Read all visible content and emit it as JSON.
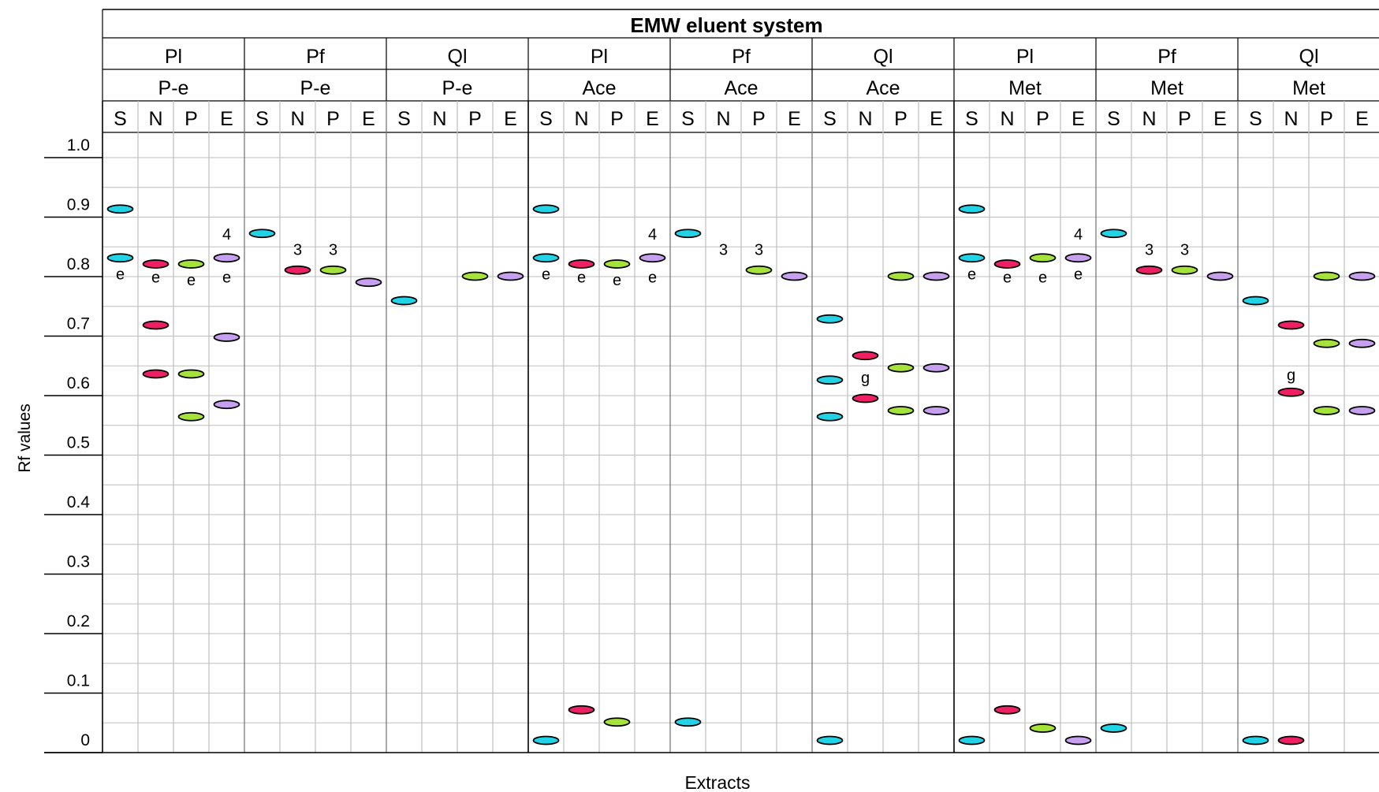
{
  "chart_data": {
    "type": "scatter",
    "title": "EMW eluent system",
    "xlabel": "Extracts",
    "ylabel": "Rf  values",
    "ylim": [
      0,
      1.0
    ],
    "ytick_labels": [
      "0",
      "0.1",
      "0.2",
      "0.3",
      "0.4",
      "0.5",
      "0.6",
      "0.7",
      "0.8",
      "0.9",
      "1.0"
    ],
    "grid": true,
    "lane_labels": [
      "S",
      "N",
      "P",
      "E"
    ],
    "lane_colors": {
      "S": "#22d3e6",
      "N": "#ef1f63",
      "P": "#a6e33a",
      "E": "#c6a0ee"
    },
    "groups": [
      {
        "plant": "Pl",
        "solvent": "P-e",
        "spots": [
          {
            "lane": "S",
            "rf": 0.89
          },
          {
            "lane": "S",
            "rf": 0.81
          },
          {
            "lane": "N",
            "rf": 0.8
          },
          {
            "lane": "N",
            "rf": 0.7
          },
          {
            "lane": "N",
            "rf": 0.62
          },
          {
            "lane": "P",
            "rf": 0.8
          },
          {
            "lane": "P",
            "rf": 0.62
          },
          {
            "lane": "P",
            "rf": 0.55
          },
          {
            "lane": "E",
            "rf": 0.81
          },
          {
            "lane": "E",
            "rf": 0.68
          },
          {
            "lane": "E",
            "rf": 0.57
          }
        ],
        "annotations": [
          {
            "lane": "S",
            "rf": 0.775,
            "text": "e"
          },
          {
            "lane": "N",
            "rf": 0.77,
            "text": "e"
          },
          {
            "lane": "P",
            "rf": 0.765,
            "text": "e"
          },
          {
            "lane": "E",
            "rf": 0.77,
            "text": "e"
          },
          {
            "lane": "E",
            "rf": 0.84,
            "text": "4"
          }
        ]
      },
      {
        "plant": "Pf",
        "solvent": "P-e",
        "spots": [
          {
            "lane": "S",
            "rf": 0.85
          },
          {
            "lane": "N",
            "rf": 0.79
          },
          {
            "lane": "P",
            "rf": 0.79
          },
          {
            "lane": "E",
            "rf": 0.77
          }
        ],
        "annotations": [
          {
            "lane": "N",
            "rf": 0.815,
            "text": "3"
          },
          {
            "lane": "P",
            "rf": 0.815,
            "text": "3"
          }
        ]
      },
      {
        "plant": "Ql",
        "solvent": "P-e",
        "spots": [
          {
            "lane": "S",
            "rf": 0.74
          },
          {
            "lane": "P",
            "rf": 0.78
          },
          {
            "lane": "E",
            "rf": 0.78
          }
        ],
        "annotations": []
      },
      {
        "plant": "Pl",
        "solvent": "Ace",
        "spots": [
          {
            "lane": "S",
            "rf": 0.89
          },
          {
            "lane": "S",
            "rf": 0.81
          },
          {
            "lane": "S",
            "rf": 0.02
          },
          {
            "lane": "N",
            "rf": 0.8
          },
          {
            "lane": "N",
            "rf": 0.07
          },
          {
            "lane": "P",
            "rf": 0.8
          },
          {
            "lane": "P",
            "rf": 0.05
          },
          {
            "lane": "E",
            "rf": 0.81
          }
        ],
        "annotations": [
          {
            "lane": "S",
            "rf": 0.775,
            "text": "e"
          },
          {
            "lane": "N",
            "rf": 0.77,
            "text": "e"
          },
          {
            "lane": "P",
            "rf": 0.765,
            "text": "e"
          },
          {
            "lane": "E",
            "rf": 0.77,
            "text": "e"
          },
          {
            "lane": "E",
            "rf": 0.84,
            "text": "4"
          }
        ]
      },
      {
        "plant": "Pf",
        "solvent": "Ace",
        "spots": [
          {
            "lane": "S",
            "rf": 0.85
          },
          {
            "lane": "S",
            "rf": 0.05
          },
          {
            "lane": "P",
            "rf": 0.79
          },
          {
            "lane": "E",
            "rf": 0.78
          }
        ],
        "annotations": [
          {
            "lane": "N",
            "rf": 0.815,
            "text": "3"
          },
          {
            "lane": "P",
            "rf": 0.815,
            "text": "3"
          }
        ]
      },
      {
        "plant": "Ql",
        "solvent": "Ace",
        "spots": [
          {
            "lane": "S",
            "rf": 0.71
          },
          {
            "lane": "S",
            "rf": 0.61
          },
          {
            "lane": "S",
            "rf": 0.55
          },
          {
            "lane": "S",
            "rf": 0.02
          },
          {
            "lane": "N",
            "rf": 0.65
          },
          {
            "lane": "N",
            "rf": 0.58
          },
          {
            "lane": "P",
            "rf": 0.78
          },
          {
            "lane": "P",
            "rf": 0.63
          },
          {
            "lane": "P",
            "rf": 0.56
          },
          {
            "lane": "E",
            "rf": 0.78
          },
          {
            "lane": "E",
            "rf": 0.63
          },
          {
            "lane": "E",
            "rf": 0.56
          }
        ],
        "annotations": [
          {
            "lane": "N",
            "rf": 0.605,
            "text": "g"
          }
        ]
      },
      {
        "plant": "Pl",
        "solvent": "Met",
        "spots": [
          {
            "lane": "S",
            "rf": 0.89
          },
          {
            "lane": "S",
            "rf": 0.81
          },
          {
            "lane": "S",
            "rf": 0.02
          },
          {
            "lane": "N",
            "rf": 0.8
          },
          {
            "lane": "N",
            "rf": 0.07
          },
          {
            "lane": "P",
            "rf": 0.81
          },
          {
            "lane": "P",
            "rf": 0.04
          },
          {
            "lane": "E",
            "rf": 0.81
          },
          {
            "lane": "E",
            "rf": 0.02
          }
        ],
        "annotations": [
          {
            "lane": "S",
            "rf": 0.775,
            "text": "e"
          },
          {
            "lane": "N",
            "rf": 0.77,
            "text": "e"
          },
          {
            "lane": "P",
            "rf": 0.77,
            "text": "e"
          },
          {
            "lane": "E",
            "rf": 0.775,
            "text": "e"
          },
          {
            "lane": "E",
            "rf": 0.84,
            "text": "4"
          }
        ]
      },
      {
        "plant": "Pf",
        "solvent": "Met",
        "spots": [
          {
            "lane": "S",
            "rf": 0.85
          },
          {
            "lane": "S",
            "rf": 0.04
          },
          {
            "lane": "N",
            "rf": 0.79
          },
          {
            "lane": "P",
            "rf": 0.79
          },
          {
            "lane": "E",
            "rf": 0.78
          }
        ],
        "annotations": [
          {
            "lane": "N",
            "rf": 0.815,
            "text": "3"
          },
          {
            "lane": "P",
            "rf": 0.815,
            "text": "3"
          }
        ]
      },
      {
        "plant": "Ql",
        "solvent": "Met",
        "spots": [
          {
            "lane": "S",
            "rf": 0.74
          },
          {
            "lane": "S",
            "rf": 0.02
          },
          {
            "lane": "N",
            "rf": 0.7
          },
          {
            "lane": "N",
            "rf": 0.59
          },
          {
            "lane": "N",
            "rf": 0.02
          },
          {
            "lane": "P",
            "rf": 0.78
          },
          {
            "lane": "P",
            "rf": 0.67
          },
          {
            "lane": "P",
            "rf": 0.56
          },
          {
            "lane": "E",
            "rf": 0.78
          },
          {
            "lane": "E",
            "rf": 0.67
          },
          {
            "lane": "E",
            "rf": 0.56
          }
        ],
        "annotations": [
          {
            "lane": "N",
            "rf": 0.61,
            "text": "g"
          }
        ]
      }
    ]
  }
}
